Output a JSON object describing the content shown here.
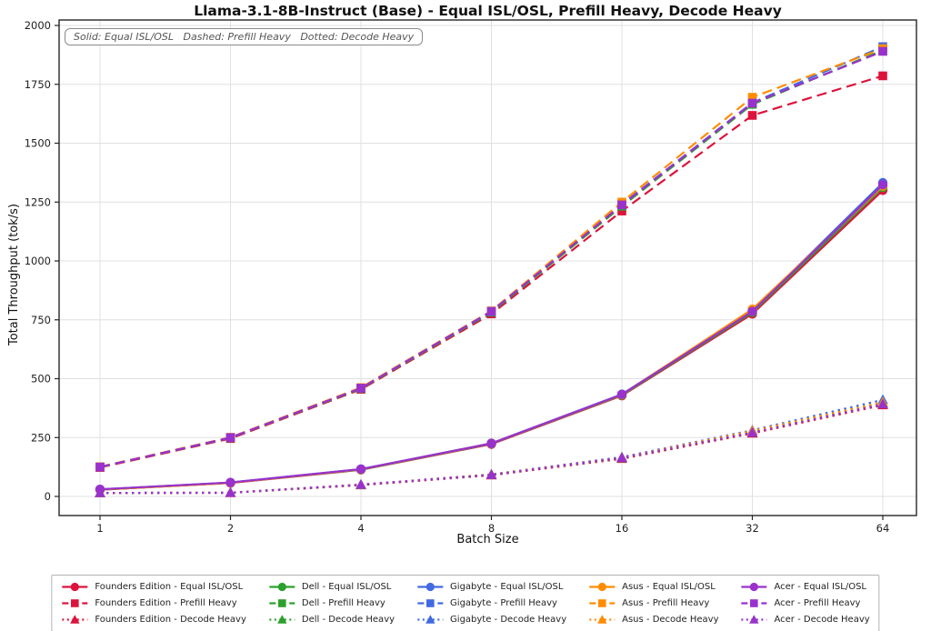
{
  "title": "Llama-3.1-8B-Instruct (Base) - Equal ISL/OSL, Prefill Heavy, Decode Heavy",
  "annotation": "Solid: Equal ISL/OSL   Dashed: Prefill Heavy   Dotted: Decode Heavy",
  "chart_data": {
    "type": "line",
    "title": "Llama-3.1-8B-Instruct (Base) - Equal ISL/OSL, Prefill Heavy, Decode Heavy",
    "xlabel": "Batch Size",
    "ylabel": "Total Throughput (tok/s)",
    "x_scale": "log2",
    "x": [
      1,
      2,
      4,
      8,
      16,
      32,
      64
    ],
    "x_ticks": [
      1,
      2,
      4,
      8,
      16,
      32,
      64
    ],
    "y_ticks": [
      0,
      250,
      500,
      750,
      1000,
      1250,
      1500,
      1750,
      2000
    ],
    "ylim": [
      0,
      2000
    ],
    "grid": true,
    "legend_position": "bottom",
    "annotation": "Solid: Equal ISL/OSL   Dashed: Prefill Heavy   Dotted: Decode Heavy",
    "vendors": [
      {
        "name": "Founders Edition",
        "color": "#DC143C"
      },
      {
        "name": "Dell",
        "color": "#2CA02C"
      },
      {
        "name": "Gigabyte",
        "color": "#4169E1"
      },
      {
        "name": "Asus",
        "color": "#FF8C00"
      },
      {
        "name": "Acer",
        "color": "#9932CC"
      }
    ],
    "workloads": [
      {
        "name": "Equal ISL/OSL",
        "line": "solid",
        "marker": "circle"
      },
      {
        "name": "Prefill Heavy",
        "line": "dashed",
        "marker": "square"
      },
      {
        "name": "Decode Heavy",
        "line": "dotted",
        "marker": "triangle"
      }
    ],
    "series": [
      {
        "vendor": "Founders Edition",
        "workload": "Equal ISL/OSL",
        "values": [
          28,
          57,
          113,
          222,
          428,
          775,
          1300
        ]
      },
      {
        "vendor": "Founders Edition",
        "workload": "Prefill Heavy",
        "values": [
          123,
          246,
          455,
          775,
          1212,
          1618,
          1786
        ]
      },
      {
        "vendor": "Founders Edition",
        "workload": "Decode Heavy",
        "values": [
          14,
          15,
          48,
          90,
          160,
          268,
          388
        ]
      },
      {
        "vendor": "Dell",
        "workload": "Equal ISL/OSL",
        "values": [
          29,
          58,
          114,
          224,
          430,
          782,
          1312
        ]
      },
      {
        "vendor": "Dell",
        "workload": "Prefill Heavy",
        "values": [
          125,
          249,
          458,
          782,
          1232,
          1665,
          1895
        ]
      },
      {
        "vendor": "Dell",
        "workload": "Decode Heavy",
        "values": [
          15,
          16,
          49,
          92,
          163,
          272,
          395
        ]
      },
      {
        "vendor": "Gigabyte",
        "workload": "Equal ISL/OSL",
        "values": [
          30,
          59,
          116,
          226,
          434,
          788,
          1332
        ]
      },
      {
        "vendor": "Gigabyte",
        "workload": "Prefill Heavy",
        "values": [
          126,
          250,
          460,
          785,
          1240,
          1672,
          1910
        ]
      },
      {
        "vendor": "Gigabyte",
        "workload": "Decode Heavy",
        "values": [
          15,
          16,
          50,
          94,
          167,
          281,
          410
        ]
      },
      {
        "vendor": "Asus",
        "workload": "Equal ISL/OSL",
        "values": [
          29,
          58,
          115,
          225,
          432,
          795,
          1318
        ]
      },
      {
        "vendor": "Asus",
        "workload": "Prefill Heavy",
        "values": [
          126,
          251,
          462,
          788,
          1250,
          1695,
          1902
        ]
      },
      {
        "vendor": "Asus",
        "workload": "Decode Heavy",
        "values": [
          15,
          16,
          50,
          93,
          165,
          278,
          400
        ]
      },
      {
        "vendor": "Acer",
        "workload": "Equal ISL/OSL",
        "values": [
          30,
          59,
          116,
          225,
          433,
          786,
          1324
        ]
      },
      {
        "vendor": "Acer",
        "workload": "Prefill Heavy",
        "values": [
          125,
          250,
          460,
          786,
          1238,
          1670,
          1890
        ]
      },
      {
        "vendor": "Acer",
        "workload": "Decode Heavy",
        "values": [
          15,
          16,
          50,
          92,
          164,
          271,
          392
        ]
      }
    ]
  }
}
